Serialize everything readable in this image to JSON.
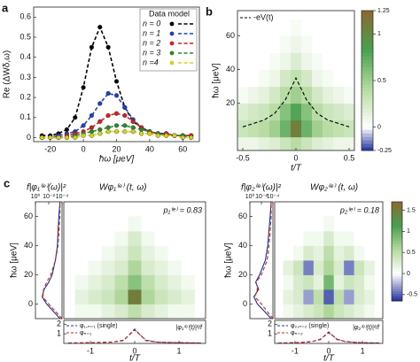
{
  "chart_data": [
    {
      "panel_label": "a",
      "type": "line",
      "xlabel": "ħω [μeV]",
      "ylabel": "Re (ΔWδ,ω)",
      "x": [
        -25,
        -20,
        -15,
        -10,
        -5,
        0,
        5,
        10,
        15,
        20,
        25,
        30,
        35,
        40,
        45,
        50,
        55,
        60,
        65
      ],
      "xlim": [
        -30,
        70
      ],
      "xticks": [
        -20,
        0,
        20,
        40,
        60
      ],
      "ylim": [
        -0.02,
        0.65
      ],
      "yticks": [
        0,
        0.1,
        0.2,
        0.3,
        0.4,
        0.5,
        0.6
      ],
      "markers": true,
      "dash": true,
      "legend_title": "Data model",
      "legend": "upper right",
      "series": [
        {
          "name": "n = 0",
          "color": "#000000",
          "values": [
            0.01,
            0.01,
            0.02,
            0.04,
            0.1,
            0.25,
            0.45,
            0.55,
            0.45,
            0.28,
            0.15,
            0.08,
            0.05,
            0.03,
            0.02,
            0.02,
            0.01,
            0.01,
            0.01
          ]
        },
        {
          "name": "n = 1",
          "color": "#1f3fbf",
          "values": [
            0,
            0,
            0.01,
            0.02,
            0.03,
            0.06,
            0.11,
            0.17,
            0.22,
            0.21,
            0.15,
            0.09,
            0.05,
            0.03,
            0.02,
            0.02,
            0.01,
            0.01,
            0.01
          ]
        },
        {
          "name": "n = 2",
          "color": "#d42020",
          "values": [
            0,
            0,
            0,
            0.01,
            0.02,
            0.03,
            0.05,
            0.08,
            0.11,
            0.12,
            0.11,
            0.08,
            0.05,
            0.03,
            0.02,
            0.02,
            0.01,
            0.01,
            0.01
          ]
        },
        {
          "name": "n = 3",
          "color": "#2a8a2a",
          "values": [
            0,
            0,
            0,
            0,
            0.01,
            0.02,
            0.03,
            0.04,
            0.05,
            0.06,
            0.06,
            0.05,
            0.04,
            0.03,
            0.02,
            0.01,
            0.01,
            0.01,
            0
          ]
        },
        {
          "name": "n =4",
          "color": "#d8d020",
          "values": [
            0,
            0,
            0,
            0,
            0,
            0.01,
            0.01,
            0.02,
            0.03,
            0.03,
            0.03,
            0.03,
            0.02,
            0.02,
            0.01,
            0.01,
            0.01,
            0,
            0
          ]
        }
      ]
    },
    {
      "panel_label": "b",
      "type": "heatmap",
      "xlabel": "t/T",
      "ylabel": "ħω [μeV]",
      "x": [
        -0.5,
        -0.4,
        -0.3,
        -0.2,
        -0.1,
        0,
        0.1,
        0.2,
        0.3,
        0.4,
        0.5
      ],
      "y": [
        -5,
        5,
        15,
        25,
        35,
        45,
        55,
        65,
        75
      ],
      "z": [
        [
          0.1,
          0.1,
          0.15,
          0.2,
          0.3,
          0.4,
          0.3,
          0.2,
          0.15,
          0.1,
          0.1
        ],
        [
          0.3,
          0.35,
          0.4,
          0.5,
          0.7,
          1.1,
          0.7,
          0.5,
          0.4,
          0.35,
          0.3
        ],
        [
          0.2,
          0.25,
          0.3,
          0.4,
          0.6,
          0.8,
          0.6,
          0.4,
          0.3,
          0.25,
          0.2
        ],
        [
          0.05,
          0.1,
          0.15,
          0.25,
          0.4,
          0.5,
          0.4,
          0.25,
          0.15,
          0.1,
          0.05
        ],
        [
          0,
          0,
          0.05,
          0.1,
          0.25,
          0.35,
          0.25,
          0.1,
          0.05,
          0,
          0
        ],
        [
          0,
          0,
          0,
          0.05,
          0.1,
          0.2,
          0.1,
          0.05,
          0,
          0,
          0
        ],
        [
          0,
          0,
          0,
          0,
          0.05,
          0.1,
          0.05,
          0,
          0,
          0,
          0
        ],
        [
          0,
          0,
          0,
          0,
          0,
          0.05,
          0,
          0,
          0,
          0,
          0
        ],
        [
          0,
          0,
          0,
          0,
          0,
          0,
          0,
          0,
          0,
          0,
          0
        ]
      ],
      "xlim": [
        -0.55,
        0.55
      ],
      "xticks": [
        -0.5,
        0,
        0.5
      ],
      "ylim": [
        -8,
        75
      ],
      "yticks": [
        20,
        40,
        60
      ],
      "colorbar": {
        "lim": [
          -0.25,
          1.25
        ],
        "ticks": [
          -0.25,
          0,
          0.5,
          1,
          1.25
        ],
        "neg_color": "#1f2f9a",
        "pos_colors": [
          "#ffffff",
          "#b5dba0",
          "#4a9f50",
          "#8a6a30"
        ]
      },
      "legend": "upper left",
      "series": [
        {
          "name": "-eV(t)",
          "color": "#000000",
          "dash": true,
          "x": [
            -0.5,
            -0.4,
            -0.3,
            -0.2,
            -0.1,
            0,
            0.1,
            0.2,
            0.3,
            0.4,
            0.5
          ],
          "values": [
            6,
            8,
            10,
            14,
            22,
            35,
            22,
            14,
            10,
            8,
            6
          ]
        }
      ]
    },
    {
      "panel_label": "c",
      "type": "line",
      "orientation": "horizontal",
      "title": "f|φ₁⁽ᵉ⁾(ω)|²",
      "ylabel": "ħω [μeV]",
      "xlog": true,
      "xlim": [
        1,
        0.0001
      ],
      "xaxis_position": "top",
      "xticks": [
        {
          "value": 1,
          "label": "10⁰"
        },
        {
          "value": 0.01,
          "label": "10⁻²"
        },
        {
          "value": 0.0001,
          "label": "10⁻⁴"
        }
      ],
      "y": [
        -10,
        -5,
        0,
        5,
        10,
        15,
        20,
        30,
        40,
        50,
        60,
        70
      ],
      "ylim": [
        -10,
        70
      ],
      "yticks": [
        0,
        20,
        40,
        60
      ],
      "series": [
        {
          "color": "#1f2f9a",
          "values": [
            0.0002,
            0.002,
            0.02,
            0.1,
            0.05,
            0.01,
            0.003,
            0.001,
            0.0005,
            0.0004,
            0.0003,
            0.0002
          ]
        },
        {
          "color": "#d42020",
          "dash": true,
          "values": [
            0.0001,
            0.001,
            0.01,
            0.08,
            0.06,
            0.02,
            0.005,
            0.001,
            0.0004,
            0.0003,
            0.0002,
            0.0002
          ]
        }
      ]
    },
    {
      "type": "heatmap",
      "title": "Wφ₁⁽ᵉ⁾ (t, ω)",
      "annotation": "p₁⁽ᵉ⁾ = 0.83",
      "x": [
        -1.2,
        -0.9,
        -0.6,
        -0.3,
        0,
        0.3,
        0.6,
        0.9,
        1.2
      ],
      "y": [
        -5,
        5,
        15,
        25,
        35,
        45,
        55
      ],
      "z": [
        [
          0.1,
          0.1,
          0.2,
          0.3,
          0.5,
          0.3,
          0.2,
          0.1,
          0.1
        ],
        [
          0.2,
          0.3,
          0.4,
          0.6,
          1.5,
          0.6,
          0.4,
          0.3,
          0.2
        ],
        [
          0.1,
          0.2,
          0.3,
          0.5,
          0.8,
          0.5,
          0.3,
          0.2,
          0.1
        ],
        [
          0,
          0.1,
          0.2,
          0.3,
          0.6,
          0.3,
          0.2,
          0.1,
          0
        ],
        [
          0,
          0,
          0.1,
          0.2,
          0.4,
          0.2,
          0.1,
          0,
          0
        ],
        [
          0,
          0,
          0,
          0.1,
          0.3,
          0.1,
          0,
          0,
          0
        ],
        [
          0,
          0,
          0,
          0,
          0.1,
          0,
          0,
          0,
          0
        ]
      ],
      "xlim": [
        -1.6,
        1.6
      ],
      "ylim": [
        -10,
        70
      ]
    },
    {
      "type": "line",
      "xlabel": "t/T",
      "annotation": "|φ₁⁽ᵉ⁾(t)|²/f",
      "x": [
        -1.5,
        -1.25,
        -1,
        -0.75,
        -0.5,
        -0.25,
        0,
        0.25,
        0.5,
        0.75,
        1,
        1.25,
        1.5
      ],
      "xlim": [
        -1.6,
        1.6
      ],
      "xticks": [
        -1,
        0,
        1
      ],
      "ylim": [
        0,
        2.4
      ],
      "yticks": [
        1,
        2
      ],
      "legend": "upper left",
      "series": [
        {
          "name": "φ₁,ₙ₌₁ (single)",
          "color": "#1f2f9a",
          "dash": true,
          "values": [
            0.05,
            0.06,
            0.08,
            0.1,
            0.15,
            0.3,
            1.5,
            0.3,
            0.15,
            0.1,
            0.08,
            0.06,
            0.05
          ]
        },
        {
          "name": "φₙ₌₁",
          "color": "#d42020",
          "dash": true,
          "values": [
            0.05,
            0.06,
            0.07,
            0.1,
            0.14,
            0.35,
            1.4,
            0.35,
            0.14,
            0.1,
            0.07,
            0.06,
            0.05
          ]
        }
      ]
    },
    {
      "type": "line",
      "orientation": "horizontal",
      "title": "f|φ₂⁽ᵉ⁾(ω)|²",
      "ylabel": "ħω [μeV]",
      "xlog": true,
      "xlim": [
        1,
        0.0001
      ],
      "xaxis_position": "top",
      "xticks": [
        {
          "value": 1,
          "label": "10⁰"
        },
        {
          "value": 0.01,
          "label": "10⁻²"
        },
        {
          "value": 0.0001,
          "label": "10⁻⁴"
        }
      ],
      "y": [
        -10,
        -5,
        0,
        5,
        10,
        15,
        20,
        30,
        40,
        50,
        60,
        70
      ],
      "ylim": [
        -10,
        70
      ],
      "yticks": [
        0,
        20,
        40,
        60
      ],
      "series": [
        {
          "color": "#1f2f9a",
          "values": [
            0.0002,
            0.003,
            0.05,
            0.2,
            0.03,
            0.1,
            0.02,
            0.002,
            0.0008,
            0.0005,
            0.0003,
            0.0002
          ]
        },
        {
          "color": "#d42020",
          "dash": true,
          "values": [
            0.0001,
            0.001,
            0.01,
            0.15,
            0.05,
            0.08,
            0.01,
            0.001,
            0.0005,
            0.0003,
            0.0002,
            0.0002
          ]
        }
      ]
    },
    {
      "type": "heatmap",
      "title": "Wφ₂⁽ᵉ⁾ (t, ω)",
      "annotation": "p₂⁽ᵉ⁾ = 0.18",
      "x": [
        -1.2,
        -0.9,
        -0.6,
        -0.3,
        0,
        0.3,
        0.6,
        0.9,
        1.2
      ],
      "y": [
        -5,
        5,
        15,
        25,
        35,
        45,
        55
      ],
      "z": [
        [
          0.1,
          0.2,
          0.3,
          0.4,
          0.6,
          0.4,
          0.3,
          0.2,
          0.1
        ],
        [
          0.2,
          0.3,
          -0.3,
          0.5,
          -0.5,
          0.5,
          -0.3,
          0.3,
          0.2
        ],
        [
          0.1,
          0.3,
          0.4,
          0.2,
          0.9,
          0.2,
          0.4,
          0.3,
          0.1
        ],
        [
          0.2,
          0.4,
          -0.4,
          0.3,
          0.6,
          0.3,
          -0.4,
          0.4,
          0.2
        ],
        [
          0,
          0.1,
          0.3,
          0.2,
          0.5,
          0.2,
          0.3,
          0.1,
          0
        ],
        [
          0,
          0,
          0.1,
          0.1,
          0.3,
          0.1,
          0.1,
          0,
          0
        ],
        [
          0,
          0,
          0,
          0,
          0.1,
          0,
          0,
          0,
          0
        ]
      ],
      "xlim": [
        -1.6,
        1.6
      ],
      "ylim": [
        -10,
        70
      ],
      "colorbar": {
        "lim": [
          -0.65,
          1.7
        ],
        "ticks": [
          -0.5,
          0,
          0.5,
          1,
          1.5
        ],
        "neg_color": "#1f2f9a",
        "pos_colors": [
          "#ffffff",
          "#b5dba0",
          "#4a9f50",
          "#8a6a30"
        ]
      }
    },
    {
      "type": "line",
      "xlabel": "t/T",
      "annotation": "|φ₂⁽ᵉ⁾(t)|²/f",
      "x": [
        -1.5,
        -1.25,
        -1,
        -0.75,
        -0.5,
        -0.25,
        0,
        0.25,
        0.5,
        0.75,
        1,
        1.25,
        1.5
      ],
      "xlim": [
        -1.6,
        1.6
      ],
      "xticks": [
        -1,
        0,
        1
      ],
      "ylim": [
        0,
        2.4
      ],
      "yticks": [
        1,
        2
      ],
      "legend": "upper left",
      "series": [
        {
          "name": "φ₂,ₙ₌₂ (single)",
          "color": "#1f2f9a",
          "dash": true,
          "values": [
            0.05,
            0.06,
            0.08,
            0.12,
            0.2,
            0.4,
            1.2,
            0.4,
            0.2,
            0.12,
            0.08,
            0.06,
            0.05
          ]
        },
        {
          "name": "φₙ₌₂",
          "color": "#d42020",
          "dash": true,
          "values": [
            0.05,
            0.06,
            0.07,
            0.11,
            0.18,
            0.45,
            1.1,
            0.45,
            0.18,
            0.11,
            0.07,
            0.06,
            0.05
          ]
        }
      ]
    }
  ]
}
